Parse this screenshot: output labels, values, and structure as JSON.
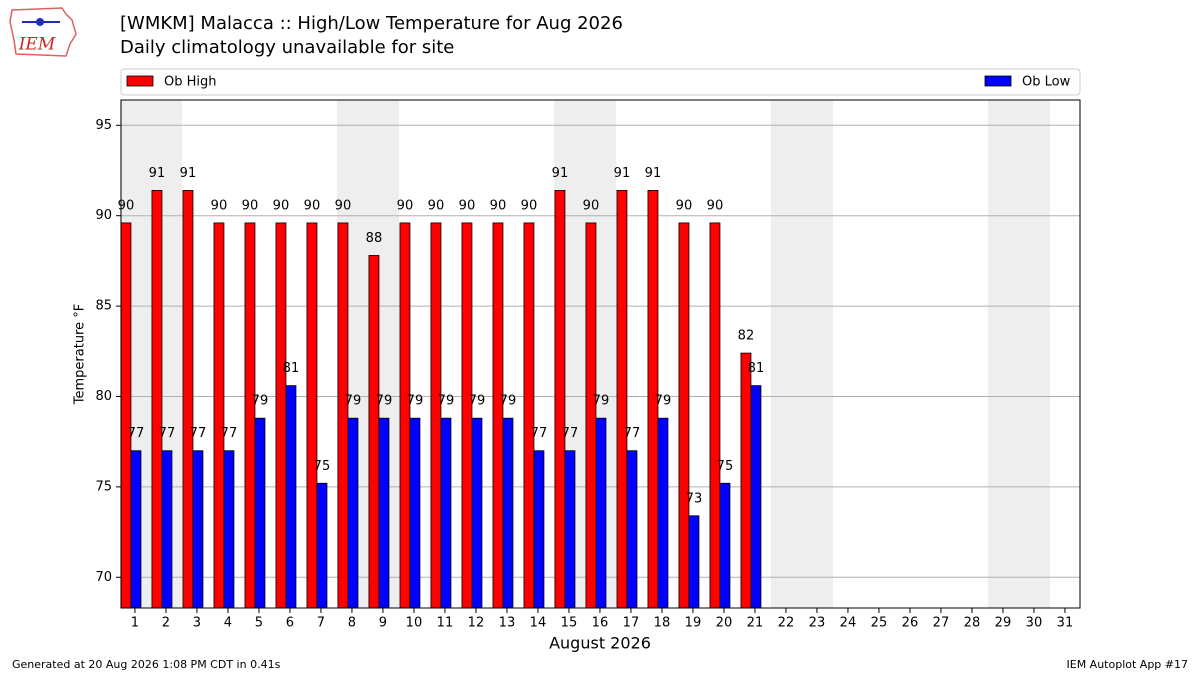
{
  "chart_data": {
    "type": "bar",
    "title": "[WMKM] Malacca :: High/Low Temperature for Aug 2026",
    "subtitle": "Daily climatology unavailable for site",
    "logo_text": "IEM",
    "x_label": "August 2026",
    "y_label": "Temperature °F",
    "categories": [
      "1",
      "2",
      "3",
      "4",
      "5",
      "6",
      "7",
      "8",
      "9",
      "10",
      "11",
      "12",
      "13",
      "14",
      "15",
      "16",
      "17",
      "18",
      "19",
      "20",
      "21",
      "22",
      "23",
      "24",
      "25",
      "26",
      "27",
      "28",
      "29",
      "30",
      "31"
    ],
    "shaded_categories": [
      "1",
      "2",
      "8",
      "9",
      "15",
      "16",
      "22",
      "23",
      "29",
      "30"
    ],
    "series": [
      {
        "name": "Ob High",
        "color": "#ff0000",
        "values": [
          89.6,
          91.4,
          91.4,
          89.6,
          89.6,
          89.6,
          89.6,
          89.6,
          87.8,
          89.6,
          89.6,
          89.6,
          89.6,
          89.6,
          91.4,
          89.6,
          91.4,
          91.4,
          89.6,
          89.6,
          82.4,
          null,
          null,
          null,
          null,
          null,
          null,
          null,
          null,
          null,
          null
        ],
        "value_labels": [
          "90",
          "91",
          "91",
          "90",
          "90",
          "90",
          "90",
          "90",
          "88",
          "90",
          "90",
          "90",
          "90",
          "90",
          "91",
          "90",
          "91",
          "91",
          "90",
          "90",
          "82",
          null,
          null,
          null,
          null,
          null,
          null,
          null,
          null,
          null,
          null
        ]
      },
      {
        "name": "Ob Low",
        "color": "#0000ff",
        "values": [
          77,
          77,
          77,
          77,
          78.8,
          80.6,
          75.2,
          78.8,
          78.8,
          78.8,
          78.8,
          78.8,
          78.8,
          77,
          77,
          78.8,
          77,
          78.8,
          73.4,
          75.2,
          80.6,
          null,
          null,
          null,
          null,
          null,
          null,
          null,
          null,
          null,
          null
        ],
        "value_labels": [
          "77",
          "77",
          "77",
          "77",
          "79",
          "81",
          "75",
          "79",
          "79",
          "79",
          "79",
          "79",
          "79",
          "77",
          "77",
          "79",
          "77",
          "79",
          "73",
          "75",
          "81",
          null,
          null,
          null,
          null,
          null,
          null,
          null,
          null,
          null,
          null
        ]
      }
    ],
    "ylim": [
      68.3,
      96.4
    ],
    "yticks": [
      70,
      75,
      80,
      85,
      90,
      95
    ],
    "grid": true,
    "footer_left": "Generated at 20 Aug 2026 1:08 PM CDT in 0.41s",
    "footer_right": "IEM Autoplot App #17"
  }
}
